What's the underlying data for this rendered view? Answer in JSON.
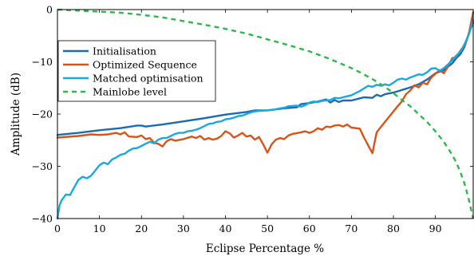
{
  "chart_data": {
    "type": "line",
    "xlabel": "Eclipse Percentage %",
    "ylabel": "Amplitude (dB)",
    "xlim": [
      0,
      99
    ],
    "ylim": [
      -40,
      0
    ],
    "xticks": [
      0,
      10,
      20,
      30,
      40,
      50,
      60,
      70,
      80,
      90
    ],
    "yticks": [
      0,
      -10,
      -20,
      -30,
      -40
    ],
    "xtick_labels": [
      "0",
      "10",
      "20",
      "30",
      "40",
      "50",
      "60",
      "70",
      "80",
      "90"
    ],
    "ytick_labels": [
      "0",
      "−10",
      "−20",
      "−30",
      "−40"
    ],
    "grid": false,
    "legend_position": "upper-left",
    "series": [
      {
        "name": "Initialisation",
        "color": "#1b6bb0",
        "style": "solid",
        "points": [
          [
            0,
            -24.0
          ],
          [
            5,
            -23.6
          ],
          [
            10,
            -23.1
          ],
          [
            15,
            -22.7
          ],
          [
            19,
            -22.2
          ],
          [
            20,
            -22.2
          ],
          [
            21,
            -22.4
          ],
          [
            25,
            -22.0
          ],
          [
            30,
            -21.4
          ],
          [
            35,
            -20.8
          ],
          [
            40,
            -20.1
          ],
          [
            45,
            -19.6
          ],
          [
            47,
            -19.3
          ],
          [
            50,
            -19.3
          ],
          [
            54,
            -18.9
          ],
          [
            57,
            -18.7
          ],
          [
            58,
            -18.1
          ],
          [
            60,
            -17.9
          ],
          [
            62,
            -17.6
          ],
          [
            64,
            -17.2
          ],
          [
            65,
            -17.8
          ],
          [
            66,
            -17.3
          ],
          [
            67,
            -17.7
          ],
          [
            68,
            -17.4
          ],
          [
            70,
            -17.4
          ],
          [
            72,
            -17.0
          ],
          [
            73,
            -16.8
          ],
          [
            75,
            -16.9
          ],
          [
            76,
            -16.3
          ],
          [
            77,
            -16.6
          ],
          [
            78,
            -16.2
          ],
          [
            80,
            -15.9
          ],
          [
            82,
            -15.4
          ],
          [
            84,
            -14.9
          ],
          [
            86,
            -14.3
          ],
          [
            88,
            -13.4
          ],
          [
            90,
            -12.2
          ],
          [
            92,
            -11.6
          ],
          [
            94,
            -10.3
          ],
          [
            95,
            -9.3
          ],
          [
            96,
            -8.5
          ],
          [
            97,
            -7.0
          ],
          [
            98,
            -4.5
          ],
          [
            99,
            -2.5
          ]
        ]
      },
      {
        "name": "Optimized Sequence",
        "color": "#d95319",
        "style": "solid",
        "points": [
          [
            0,
            -24.5
          ],
          [
            5,
            -24.2
          ],
          [
            8,
            -23.9
          ],
          [
            10,
            -24.0
          ],
          [
            12,
            -23.9
          ],
          [
            14,
            -23.6
          ],
          [
            15,
            -23.9
          ],
          [
            16,
            -23.5
          ],
          [
            17,
            -24.3
          ],
          [
            19,
            -24.4
          ],
          [
            20,
            -24.1
          ],
          [
            21,
            -24.8
          ],
          [
            22,
            -24.6
          ],
          [
            23,
            -25.5
          ],
          [
            24,
            -25.7
          ],
          [
            25,
            -26.2
          ],
          [
            26,
            -25.2
          ],
          [
            27,
            -24.8
          ],
          [
            28,
            -25.1
          ],
          [
            30,
            -24.8
          ],
          [
            32,
            -24.3
          ],
          [
            33,
            -24.6
          ],
          [
            34,
            -24.2
          ],
          [
            35,
            -24.9
          ],
          [
            36,
            -24.6
          ],
          [
            37,
            -24.9
          ],
          [
            38,
            -24.7
          ],
          [
            39,
            -24.2
          ],
          [
            40,
            -23.3
          ],
          [
            41,
            -23.7
          ],
          [
            42,
            -24.5
          ],
          [
            43,
            -24.1
          ],
          [
            44,
            -23.6
          ],
          [
            45,
            -24.3
          ],
          [
            46,
            -24.1
          ],
          [
            47,
            -24.9
          ],
          [
            48,
            -24.4
          ],
          [
            49,
            -25.8
          ],
          [
            50,
            -27.4
          ],
          [
            51,
            -25.8
          ],
          [
            52,
            -24.9
          ],
          [
            53,
            -24.6
          ],
          [
            54,
            -24.8
          ],
          [
            55,
            -24.1
          ],
          [
            56,
            -23.8
          ],
          [
            58,
            -23.5
          ],
          [
            59,
            -23.3
          ],
          [
            60,
            -23.6
          ],
          [
            61,
            -23.3
          ],
          [
            62,
            -22.7
          ],
          [
            63,
            -23.0
          ],
          [
            64,
            -22.4
          ],
          [
            65,
            -22.5
          ],
          [
            66,
            -22.2
          ],
          [
            67,
            -22.1
          ],
          [
            68,
            -22.4
          ],
          [
            69,
            -22.0
          ],
          [
            70,
            -22.6
          ],
          [
            72,
            -22.8
          ],
          [
            73,
            -24.5
          ],
          [
            74,
            -26.0
          ],
          [
            75,
            -27.5
          ],
          [
            76,
            -23.5
          ],
          [
            78,
            -21.5
          ],
          [
            80,
            -19.5
          ],
          [
            81,
            -18.5
          ],
          [
            82,
            -17.6
          ],
          [
            83,
            -16.2
          ],
          [
            84,
            -15.5
          ],
          [
            85,
            -14.5
          ],
          [
            86,
            -14.9
          ],
          [
            87,
            -14.0
          ],
          [
            88,
            -14.3
          ],
          [
            89,
            -13.0
          ],
          [
            90,
            -12.3
          ],
          [
            91,
            -11.6
          ],
          [
            92,
            -12.2
          ],
          [
            93,
            -10.9
          ],
          [
            94,
            -9.3
          ],
          [
            95,
            -9.1
          ],
          [
            96,
            -7.8
          ],
          [
            97,
            -6.8
          ],
          [
            98,
            -4.5
          ],
          [
            99,
            -0.5
          ]
        ]
      },
      {
        "name": "Matched optimisation",
        "color": "#1aa8e0",
        "style": "solid",
        "points": [
          [
            0,
            -40.0
          ],
          [
            0.5,
            -37.5
          ],
          [
            1,
            -36.5
          ],
          [
            2,
            -35.4
          ],
          [
            3,
            -35.5
          ],
          [
            4,
            -34.0
          ],
          [
            5,
            -32.6
          ],
          [
            6,
            -32.0
          ],
          [
            7,
            -32.3
          ],
          [
            8,
            -31.8
          ],
          [
            9,
            -30.8
          ],
          [
            10,
            -29.8
          ],
          [
            11,
            -29.3
          ],
          [
            12,
            -29.6
          ],
          [
            13,
            -28.7
          ],
          [
            14,
            -28.3
          ],
          [
            15,
            -27.8
          ],
          [
            16,
            -27.6
          ],
          [
            17,
            -27.0
          ],
          [
            18,
            -26.6
          ],
          [
            19,
            -26.5
          ],
          [
            20,
            -26.1
          ],
          [
            21,
            -25.7
          ],
          [
            22,
            -25.3
          ],
          [
            23,
            -25.6
          ],
          [
            24,
            -24.9
          ],
          [
            25,
            -24.6
          ],
          [
            26,
            -24.6
          ],
          [
            27,
            -24.2
          ],
          [
            28,
            -23.8
          ],
          [
            29,
            -23.6
          ],
          [
            30,
            -23.6
          ],
          [
            31,
            -23.3
          ],
          [
            32,
            -23.2
          ],
          [
            33,
            -23.0
          ],
          [
            34,
            -22.7
          ],
          [
            35,
            -22.3
          ],
          [
            36,
            -21.9
          ],
          [
            37,
            -21.8
          ],
          [
            38,
            -21.5
          ],
          [
            39,
            -21.4
          ],
          [
            40,
            -21.0
          ],
          [
            41,
            -20.9
          ],
          [
            42,
            -20.7
          ],
          [
            43,
            -20.4
          ],
          [
            44,
            -20.3
          ],
          [
            45,
            -20.0
          ],
          [
            46,
            -19.7
          ],
          [
            47,
            -19.5
          ],
          [
            48,
            -19.4
          ],
          [
            50,
            -19.3
          ],
          [
            52,
            -19.1
          ],
          [
            53,
            -18.9
          ],
          [
            54,
            -18.8
          ],
          [
            55,
            -18.5
          ],
          [
            57,
            -18.4
          ],
          [
            58,
            -18.6
          ],
          [
            59,
            -18.3
          ],
          [
            60,
            -17.8
          ],
          [
            61,
            -17.6
          ],
          [
            62,
            -17.7
          ],
          [
            63,
            -17.5
          ],
          [
            65,
            -17.3
          ],
          [
            66,
            -16.9
          ],
          [
            67,
            -17.0
          ],
          [
            68,
            -16.8
          ],
          [
            69,
            -16.6
          ],
          [
            70,
            -16.4
          ],
          [
            71,
            -16.0
          ],
          [
            72,
            -15.6
          ],
          [
            73,
            -15.1
          ],
          [
            74,
            -14.6
          ],
          [
            75,
            -14.8
          ],
          [
            76,
            -14.4
          ],
          [
            77,
            -14.6
          ],
          [
            78,
            -14.3
          ],
          [
            79,
            -14.5
          ],
          [
            80,
            -14.0
          ],
          [
            81,
            -13.4
          ],
          [
            82,
            -13.2
          ],
          [
            83,
            -13.4
          ],
          [
            84,
            -13.0
          ],
          [
            85,
            -12.7
          ],
          [
            86,
            -12.4
          ],
          [
            87,
            -12.5
          ],
          [
            88,
            -12.0
          ],
          [
            89,
            -11.3
          ],
          [
            90,
            -11.2
          ],
          [
            91,
            -11.7
          ],
          [
            92,
            -11.2
          ],
          [
            93,
            -10.5
          ],
          [
            94,
            -9.7
          ],
          [
            95,
            -8.8
          ],
          [
            96,
            -8.0
          ],
          [
            97,
            -6.5
          ],
          [
            98,
            -4.7
          ],
          [
            99,
            -2.0
          ]
        ]
      },
      {
        "name": "Mainlobe level",
        "color": "#2db84a",
        "style": "dashed",
        "points": [
          [
            0,
            0.0
          ],
          [
            5,
            -0.2
          ],
          [
            10,
            -0.4
          ],
          [
            15,
            -0.6
          ],
          [
            20,
            -1.0
          ],
          [
            25,
            -1.5
          ],
          [
            30,
            -2.2
          ],
          [
            35,
            -2.9
          ],
          [
            40,
            -3.7
          ],
          [
            45,
            -4.6
          ],
          [
            50,
            -5.7
          ],
          [
            55,
            -6.8
          ],
          [
            60,
            -8.0
          ],
          [
            65,
            -9.5
          ],
          [
            70,
            -11.2
          ],
          [
            72,
            -12.0
          ],
          [
            75,
            -13.3
          ],
          [
            78,
            -14.8
          ],
          [
            80,
            -16.0
          ],
          [
            82,
            -17.3
          ],
          [
            84,
            -18.5
          ],
          [
            86,
            -20.0
          ],
          [
            88,
            -21.5
          ],
          [
            90,
            -23.3
          ],
          [
            92,
            -25.3
          ],
          [
            94,
            -27.8
          ],
          [
            95,
            -29.3
          ],
          [
            96,
            -31.2
          ],
          [
            97,
            -33.5
          ],
          [
            98,
            -36.5
          ],
          [
            99,
            -40.0
          ]
        ]
      }
    ]
  }
}
